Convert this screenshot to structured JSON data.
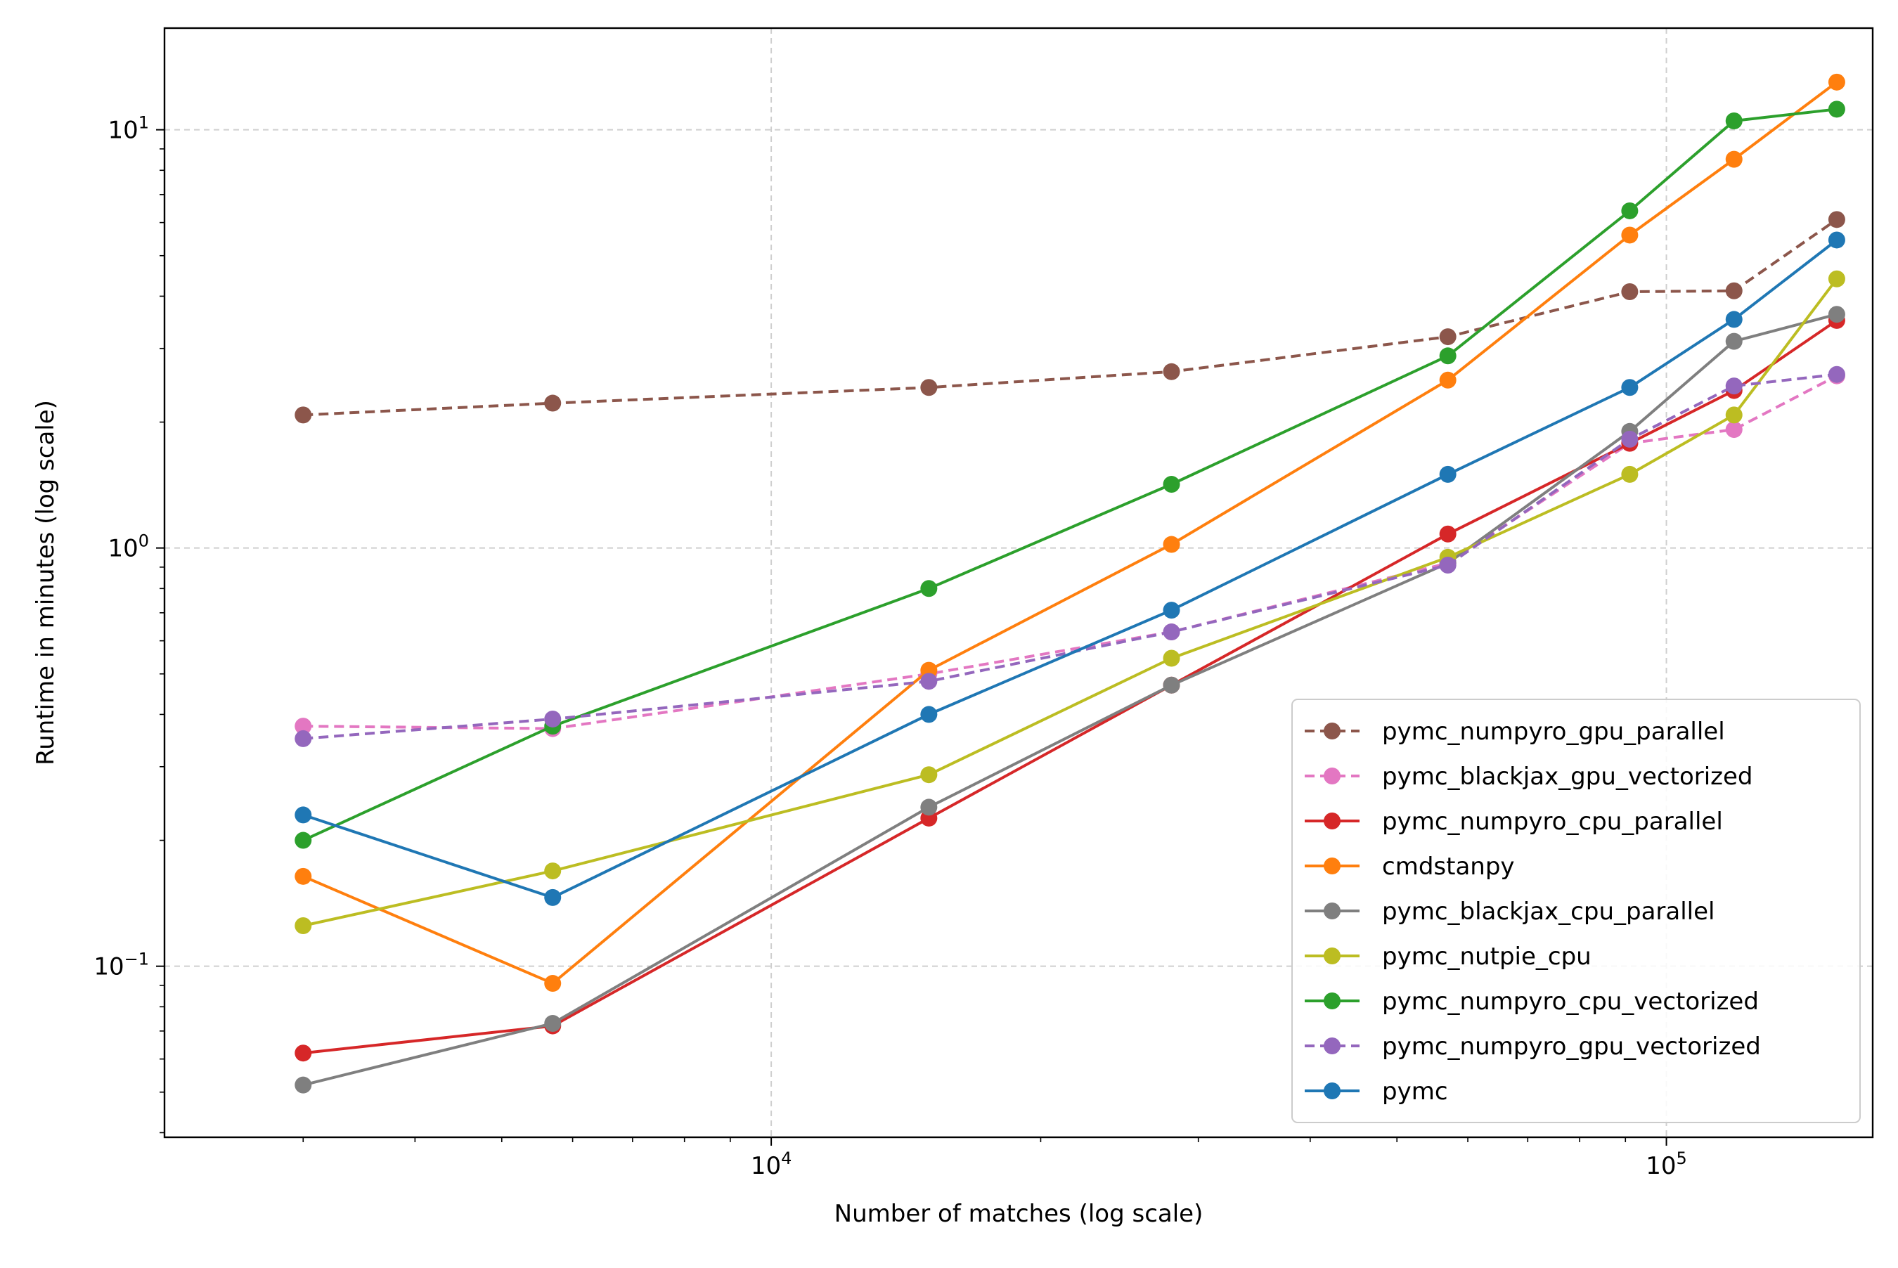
{
  "chart_data": {
    "type": "line",
    "title": "",
    "xlabel": "Number of matches (log scale)",
    "ylabel": "Runtime in minutes (log scale)",
    "xscale": "log",
    "yscale": "log",
    "xlim": [
      2100,
      170000
    ],
    "ylim": [
      0.039,
      17.5
    ],
    "grid": true,
    "legend_position": "lower-right",
    "x": [
      3000,
      5700,
      15000,
      28000,
      57000,
      91000,
      119000,
      155000
    ],
    "x_ticks": [
      {
        "value": 10000,
        "base": "10",
        "exp": "4"
      },
      {
        "value": 100000,
        "base": "10",
        "exp": "5"
      }
    ],
    "y_ticks": [
      {
        "value": 0.1,
        "base": "10",
        "exp": "−1"
      },
      {
        "value": 1,
        "base": "10",
        "exp": "0"
      },
      {
        "value": 10,
        "base": "10",
        "exp": "1"
      }
    ],
    "series": [
      {
        "name": "pymc_numpyro_gpu_parallel",
        "color": "#8c564b",
        "dashed": true,
        "values": [
          2.08,
          2.22,
          2.42,
          2.64,
          3.2,
          4.1,
          4.12,
          6.1
        ]
      },
      {
        "name": "pymc_blackjax_gpu_vectorized",
        "color": "#e377c2",
        "dashed": true,
        "values": [
          0.375,
          0.37,
          0.5,
          0.63,
          0.92,
          1.78,
          1.92,
          2.58
        ]
      },
      {
        "name": "pymc_numpyro_cpu_parallel",
        "color": "#d62728",
        "dashed": false,
        "values": [
          0.062,
          0.072,
          0.226,
          0.47,
          1.08,
          1.78,
          2.38,
          3.5
        ]
      },
      {
        "name": "cmdstanpy",
        "color": "#ff7f0e",
        "dashed": false,
        "values": [
          0.164,
          0.091,
          0.51,
          1.02,
          2.52,
          5.6,
          8.5,
          13.0
        ]
      },
      {
        "name": "pymc_blackjax_cpu_parallel",
        "color": "#7f7f7f",
        "dashed": false,
        "values": [
          0.052,
          0.073,
          0.24,
          0.47,
          0.92,
          1.9,
          3.12,
          3.62
        ]
      },
      {
        "name": "pymc_nutpie_cpu",
        "color": "#bcbd22",
        "dashed": false,
        "values": [
          0.125,
          0.169,
          0.287,
          0.545,
          0.95,
          1.5,
          2.08,
          4.4
        ]
      },
      {
        "name": "pymc_numpyro_cpu_vectorized",
        "color": "#2ca02c",
        "dashed": false,
        "values": [
          0.2,
          0.375,
          0.8,
          1.42,
          2.88,
          6.4,
          10.5,
          11.2
        ]
      },
      {
        "name": "pymc_numpyro_gpu_vectorized",
        "color": "#9467bd",
        "dashed": true,
        "values": [
          0.35,
          0.39,
          0.48,
          0.63,
          0.91,
          1.82,
          2.44,
          2.6
        ]
      },
      {
        "name": "pymc",
        "color": "#1f77b4",
        "dashed": false,
        "values": [
          0.23,
          0.146,
          0.4,
          0.71,
          1.5,
          2.42,
          3.52,
          5.45
        ]
      }
    ]
  }
}
